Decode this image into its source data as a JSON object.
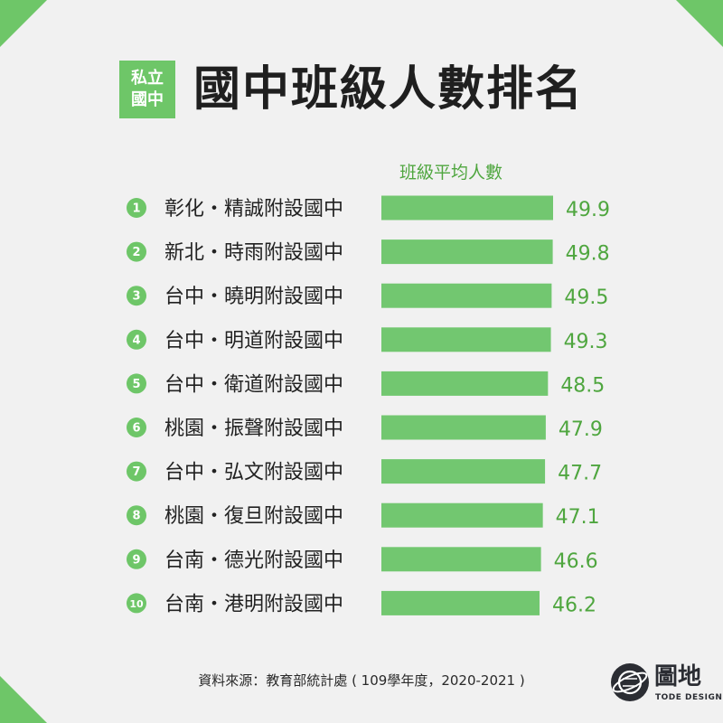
{
  "badge": {
    "line1": "私立",
    "line2": "國中"
  },
  "title": "國中班級人數排名",
  "chart_data": {
    "type": "bar",
    "orientation": "horizontal",
    "series_label": "班級平均人數",
    "ranks": [
      "1",
      "2",
      "3",
      "4",
      "5",
      "6",
      "7",
      "8",
      "9",
      "10"
    ],
    "categories": [
      "彰化・精誠附設國中",
      "新北・時雨附設國中",
      "台中・曉明附設國中",
      "台中・明道附設國中",
      "台中・衛道附設國中",
      "桃園・振聲附設國中",
      "台中・弘文附設國中",
      "桃園・復旦附設國中",
      "台南・德光附設國中",
      "台南・港明附設國中"
    ],
    "values": [
      49.9,
      49.8,
      49.5,
      49.3,
      48.5,
      47.9,
      47.7,
      47.1,
      46.6,
      46.2
    ],
    "value_labels": [
      "49.9",
      "49.8",
      "49.5",
      "49.3",
      "48.5",
      "47.9",
      "47.7",
      "47.1",
      "46.6",
      "46.2"
    ],
    "bar_color": "#72c770",
    "value_color": "#4fa63f",
    "rank_badge_color": "#6ec668"
  },
  "source": "資料來源：教育部統計處 ( 109學年度，2020-2021 )",
  "logo": {
    "name": "圖地",
    "subtitle": "TODE DESIGN",
    "icon": "globe-icon"
  },
  "colors": {
    "accent": "#6ec668",
    "background": "#f1f1f1",
    "text": "#1f1f1f"
  }
}
